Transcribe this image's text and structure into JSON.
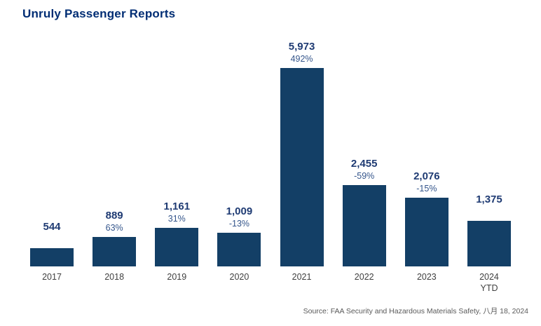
{
  "title": "Unruly Passenger Reports",
  "source": "Source: FAA Security and Hazardous Materials Safety, 八月 18, 2024",
  "colors": {
    "title": "#002d74",
    "bar": "#133f66",
    "value_label": "#1f3b73",
    "pct_label": "#34558b",
    "axis_label": "#3f3f3f",
    "source_text": "#595959",
    "background": "#ffffff"
  },
  "chart_data": {
    "type": "bar",
    "title": "Unruly Passenger Reports",
    "categories": [
      "2017",
      "2018",
      "2019",
      "2020",
      "2021",
      "2022",
      "2023",
      "2024"
    ],
    "category_sublabels": [
      "",
      "",
      "",
      "",
      "",
      "",
      "",
      "YTD"
    ],
    "values": [
      544,
      889,
      1161,
      1009,
      5973,
      2455,
      2076,
      1375
    ],
    "value_labels": [
      "544",
      "889",
      "1,161",
      "1,009",
      "5,973",
      "2,455",
      "2,076",
      "1,375"
    ],
    "pct_change_labels": [
      "",
      "63%",
      "31%",
      "-13%",
      "492%",
      "-59%",
      "-15%",
      ""
    ],
    "xlabel": "",
    "ylabel": "",
    "ylim": [
      0,
      6000
    ],
    "grid": false,
    "legend": false,
    "axis_lines": false,
    "value_labels_position": "above-bar"
  }
}
